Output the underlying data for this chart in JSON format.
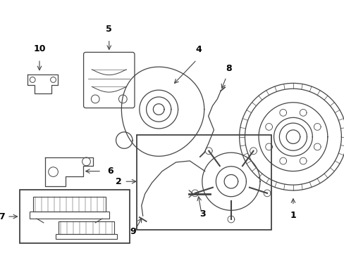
{
  "bg_color": "#ffffff",
  "line_color": "#444444",
  "fig_width": 4.89,
  "fig_height": 3.6,
  "dpi": 100
}
